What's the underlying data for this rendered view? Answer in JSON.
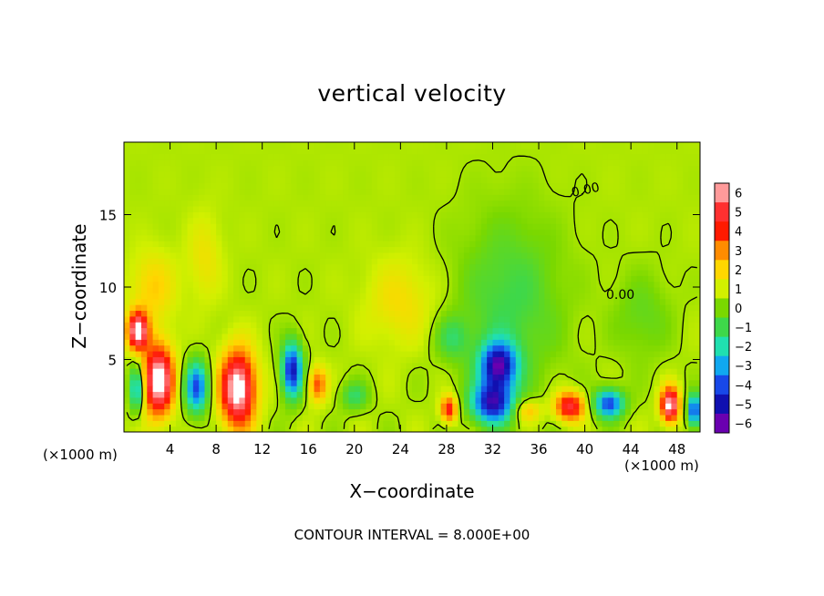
{
  "chart_data": {
    "type": "heatmap",
    "title": "vertical velocity",
    "xlabel": "X−coordinate",
    "ylabel": "Z−coordinate",
    "x_unit_left": "(×1000 m)",
    "x_unit_right": "(×1000 m)",
    "footer": "CONTOUR INTERVAL = 8.000E+00",
    "xlim": [
      0,
      50
    ],
    "ylim": [
      0,
      20
    ],
    "x_ticks": [
      "4",
      "8",
      "12",
      "16",
      "20",
      "24",
      "28",
      "32",
      "36",
      "40",
      "44",
      "48"
    ],
    "x_tick_values": [
      4,
      8,
      12,
      16,
      20,
      24,
      28,
      32,
      36,
      40,
      44,
      48
    ],
    "y_ticks": [
      "5",
      "10",
      "15"
    ],
    "y_tick_values": [
      5,
      10,
      15
    ],
    "contour_label": "0.00",
    "colorbar": {
      "labels": [
        "6",
        "5",
        "4",
        "3",
        "2",
        "1",
        "0",
        "−1",
        "−2",
        "−3",
        "−4",
        "−5",
        "−6"
      ],
      "values": [
        6,
        5,
        4,
        3,
        2,
        1,
        0,
        -1,
        -2,
        -3,
        -4,
        -5,
        -6
      ],
      "colors": [
        "#ff9a9a",
        "#ff3030",
        "#ff1a00",
        "#ff8c00",
        "#ffd700",
        "#d2f000",
        "#7ad800",
        "#3ed84a",
        "#20e0b0",
        "#10a8f0",
        "#1848e8",
        "#1010b0",
        "#6a00b0"
      ]
    },
    "features": [
      {
        "x": 1.2,
        "z": 7.0,
        "sx": 0.9,
        "sz": 1.3,
        "v": 6
      },
      {
        "x": 3.0,
        "z": 3.6,
        "sx": 1.3,
        "sz": 2.4,
        "v": 6.5
      },
      {
        "x": 1.1,
        "z": 3.0,
        "sx": 0.6,
        "sz": 1.6,
        "v": -3.5
      },
      {
        "x": 6.3,
        "z": 3.1,
        "sx": 1.0,
        "sz": 1.8,
        "v": -4.5
      },
      {
        "x": 9.9,
        "z": 3.0,
        "sx": 1.5,
        "sz": 2.6,
        "v": 6.5
      },
      {
        "x": 14.6,
        "z": 4.3,
        "sx": 0.9,
        "sz": 1.9,
        "v": -5.5
      },
      {
        "x": 16.8,
        "z": 3.3,
        "sx": 0.8,
        "sz": 1.2,
        "v": 3
      },
      {
        "x": 2.5,
        "z": 10.0,
        "sx": 2.0,
        "sz": 2.5,
        "v": 1.5
      },
      {
        "x": 7.0,
        "z": 12.0,
        "sx": 1.5,
        "sz": 3.0,
        "v": 1.0
      },
      {
        "x": 20.0,
        "z": 2.5,
        "sx": 1.2,
        "sz": 1.0,
        "v": -1.8
      },
      {
        "x": 24.0,
        "z": 9.0,
        "sx": 3.0,
        "sz": 3.0,
        "v": 1.2
      },
      {
        "x": 28.2,
        "z": 1.6,
        "sx": 0.7,
        "sz": 0.9,
        "v": 4
      },
      {
        "x": 32.5,
        "z": 4.6,
        "sx": 1.6,
        "sz": 1.6,
        "v": -5.8
      },
      {
        "x": 32.0,
        "z": 2.0,
        "sx": 1.8,
        "sz": 1.4,
        "v": -5.5
      },
      {
        "x": 33.5,
        "z": 9.0,
        "sx": 4.5,
        "sz": 6.0,
        "v": -1.6
      },
      {
        "x": 38.7,
        "z": 1.8,
        "sx": 1.3,
        "sz": 1.0,
        "v": 4.5
      },
      {
        "x": 42.1,
        "z": 2.0,
        "sx": 1.3,
        "sz": 1.0,
        "v": -4.8
      },
      {
        "x": 47.4,
        "z": 1.9,
        "sx": 0.8,
        "sz": 1.2,
        "v": 6
      },
      {
        "x": 49.5,
        "z": 1.5,
        "sx": 0.6,
        "sz": 1.1,
        "v": -5
      },
      {
        "x": 35.0,
        "z": 1.5,
        "sx": 1.2,
        "sz": 0.8,
        "v": 2.0
      },
      {
        "x": 45.0,
        "z": 8.0,
        "sx": 2.5,
        "sz": 3.0,
        "v": -1.0
      },
      {
        "x": 28.5,
        "z": 6.5,
        "sx": 1.5,
        "sz": 1.5,
        "v": -1.5
      }
    ]
  }
}
